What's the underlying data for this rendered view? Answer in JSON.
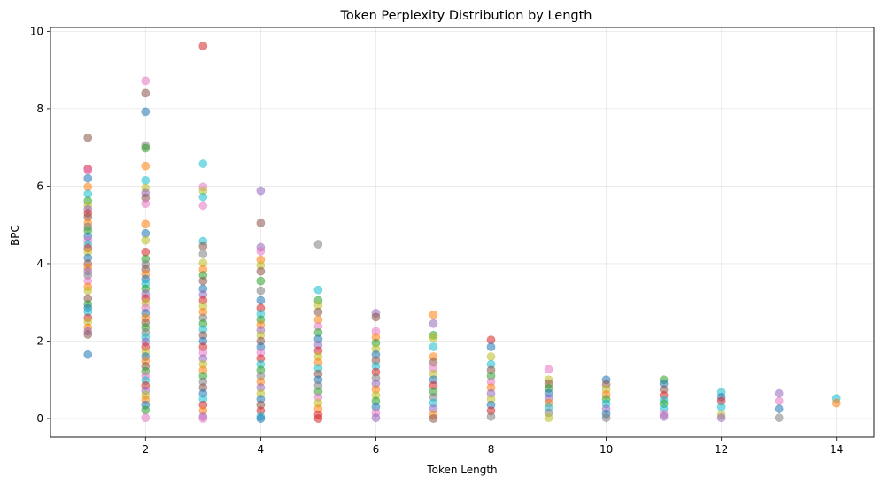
{
  "chart_data": {
    "type": "scatter",
    "title": "Token Perplexity Distribution by Length",
    "xlabel": "Token Length",
    "ylabel": "BPC",
    "xlim": [
      0.35,
      14.65
    ],
    "ylim": [
      -0.48,
      10.1
    ],
    "xticks": [
      2,
      4,
      6,
      8,
      10,
      12,
      14
    ],
    "yticks": [
      0,
      2,
      4,
      6,
      8,
      10
    ],
    "grid": true,
    "marker_alpha": 0.55,
    "palette": [
      "#1f77b4",
      "#ff7f0e",
      "#2ca02c",
      "#d62728",
      "#9467bd",
      "#8c564b",
      "#e377c2",
      "#7f7f7f",
      "#bcbd22",
      "#17becf"
    ],
    "points": [
      {
        "x": 1,
        "y": 7.25,
        "c": 5
      },
      {
        "x": 1,
        "y": 6.45,
        "c": 3
      },
      {
        "x": 1,
        "y": 6.4,
        "c": 6
      },
      {
        "x": 1,
        "y": 6.2,
        "c": 0
      },
      {
        "x": 1,
        "y": 5.98,
        "c": 1
      },
      {
        "x": 1,
        "y": 5.8,
        "c": 9
      },
      {
        "x": 1,
        "y": 5.62,
        "c": 2
      },
      {
        "x": 1,
        "y": 5.5,
        "c": 8
      },
      {
        "x": 1,
        "y": 5.4,
        "c": 4
      },
      {
        "x": 1,
        "y": 5.3,
        "c": 3
      },
      {
        "x": 1,
        "y": 5.2,
        "c": 5
      },
      {
        "x": 1,
        "y": 5.05,
        "c": 1
      },
      {
        "x": 1,
        "y": 4.95,
        "c": 7
      },
      {
        "x": 1,
        "y": 4.85,
        "c": 2
      },
      {
        "x": 1,
        "y": 4.7,
        "c": 0
      },
      {
        "x": 1,
        "y": 4.6,
        "c": 6
      },
      {
        "x": 1,
        "y": 4.5,
        "c": 9
      },
      {
        "x": 1,
        "y": 4.4,
        "c": 3
      },
      {
        "x": 1,
        "y": 4.3,
        "c": 8
      },
      {
        "x": 1,
        "y": 4.15,
        "c": 0
      },
      {
        "x": 1,
        "y": 4.0,
        "c": 5
      },
      {
        "x": 1,
        "y": 3.9,
        "c": 1
      },
      {
        "x": 1,
        "y": 3.8,
        "c": 4
      },
      {
        "x": 1,
        "y": 3.7,
        "c": 7
      },
      {
        "x": 1,
        "y": 3.55,
        "c": 6
      },
      {
        "x": 1,
        "y": 3.4,
        "c": 1
      },
      {
        "x": 1,
        "y": 3.3,
        "c": 8
      },
      {
        "x": 1,
        "y": 3.1,
        "c": 5
      },
      {
        "x": 1,
        "y": 2.95,
        "c": 2
      },
      {
        "x": 1,
        "y": 2.85,
        "c": 0
      },
      {
        "x": 1,
        "y": 2.75,
        "c": 9
      },
      {
        "x": 1,
        "y": 2.6,
        "c": 3
      },
      {
        "x": 1,
        "y": 2.5,
        "c": 8
      },
      {
        "x": 1,
        "y": 2.35,
        "c": 1
      },
      {
        "x": 1,
        "y": 2.25,
        "c": 4
      },
      {
        "x": 1,
        "y": 2.17,
        "c": 5
      },
      {
        "x": 1,
        "y": 1.65,
        "c": 0
      },
      {
        "x": 2,
        "y": 8.72,
        "c": 6
      },
      {
        "x": 2,
        "y": 8.4,
        "c": 5
      },
      {
        "x": 2,
        "y": 7.92,
        "c": 0
      },
      {
        "x": 2,
        "y": 7.05,
        "c": 7
      },
      {
        "x": 2,
        "y": 6.98,
        "c": 2
      },
      {
        "x": 2,
        "y": 6.52,
        "c": 1
      },
      {
        "x": 2,
        "y": 6.15,
        "c": 9
      },
      {
        "x": 2,
        "y": 5.95,
        "c": 8
      },
      {
        "x": 2,
        "y": 5.82,
        "c": 4
      },
      {
        "x": 2,
        "y": 5.7,
        "c": 5
      },
      {
        "x": 2,
        "y": 5.55,
        "c": 6
      },
      {
        "x": 2,
        "y": 5.02,
        "c": 1
      },
      {
        "x": 2,
        "y": 4.78,
        "c": 0
      },
      {
        "x": 2,
        "y": 4.6,
        "c": 8
      },
      {
        "x": 2,
        "y": 4.3,
        "c": 3
      },
      {
        "x": 2,
        "y": 4.12,
        "c": 2
      },
      {
        "x": 2,
        "y": 3.98,
        "c": 7
      },
      {
        "x": 2,
        "y": 3.85,
        "c": 5
      },
      {
        "x": 2,
        "y": 3.72,
        "c": 1
      },
      {
        "x": 2,
        "y": 3.6,
        "c": 0
      },
      {
        "x": 2,
        "y": 3.48,
        "c": 9
      },
      {
        "x": 2,
        "y": 3.35,
        "c": 2
      },
      {
        "x": 2,
        "y": 3.22,
        "c": 4
      },
      {
        "x": 2,
        "y": 3.1,
        "c": 3
      },
      {
        "x": 2,
        "y": 2.98,
        "c": 8
      },
      {
        "x": 2,
        "y": 2.85,
        "c": 6
      },
      {
        "x": 2,
        "y": 2.72,
        "c": 0
      },
      {
        "x": 2,
        "y": 2.6,
        "c": 1
      },
      {
        "x": 2,
        "y": 2.48,
        "c": 5
      },
      {
        "x": 2,
        "y": 2.35,
        "c": 2
      },
      {
        "x": 2,
        "y": 2.22,
        "c": 7
      },
      {
        "x": 2,
        "y": 2.1,
        "c": 9
      },
      {
        "x": 2,
        "y": 1.98,
        "c": 4
      },
      {
        "x": 2,
        "y": 1.85,
        "c": 3
      },
      {
        "x": 2,
        "y": 1.72,
        "c": 8
      },
      {
        "x": 2,
        "y": 1.6,
        "c": 0
      },
      {
        "x": 2,
        "y": 1.48,
        "c": 1
      },
      {
        "x": 2,
        "y": 1.35,
        "c": 5
      },
      {
        "x": 2,
        "y": 1.22,
        "c": 2
      },
      {
        "x": 2,
        "y": 1.1,
        "c": 6
      },
      {
        "x": 2,
        "y": 0.98,
        "c": 9
      },
      {
        "x": 2,
        "y": 0.85,
        "c": 3
      },
      {
        "x": 2,
        "y": 0.72,
        "c": 4
      },
      {
        "x": 2,
        "y": 0.6,
        "c": 8
      },
      {
        "x": 2,
        "y": 0.48,
        "c": 1
      },
      {
        "x": 2,
        "y": 0.35,
        "c": 0
      },
      {
        "x": 2,
        "y": 0.22,
        "c": 2
      },
      {
        "x": 2,
        "y": 0.02,
        "c": 6
      },
      {
        "x": 3,
        "y": 9.62,
        "c": 3
      },
      {
        "x": 3,
        "y": 6.58,
        "c": 9
      },
      {
        "x": 3,
        "y": 5.98,
        "c": 6
      },
      {
        "x": 3,
        "y": 5.88,
        "c": 8
      },
      {
        "x": 3,
        "y": 5.72,
        "c": 9
      },
      {
        "x": 3,
        "y": 5.5,
        "c": 6
      },
      {
        "x": 3,
        "y": 4.58,
        "c": 9
      },
      {
        "x": 3,
        "y": 4.45,
        "c": 5
      },
      {
        "x": 3,
        "y": 4.25,
        "c": 7
      },
      {
        "x": 3,
        "y": 4.02,
        "c": 8
      },
      {
        "x": 3,
        "y": 3.85,
        "c": 1
      },
      {
        "x": 3,
        "y": 3.7,
        "c": 2
      },
      {
        "x": 3,
        "y": 3.55,
        "c": 5
      },
      {
        "x": 3,
        "y": 3.35,
        "c": 0
      },
      {
        "x": 3,
        "y": 3.2,
        "c": 4
      },
      {
        "x": 3,
        "y": 3.05,
        "c": 3
      },
      {
        "x": 3,
        "y": 2.9,
        "c": 8
      },
      {
        "x": 3,
        "y": 2.75,
        "c": 1
      },
      {
        "x": 3,
        "y": 2.6,
        "c": 7
      },
      {
        "x": 3,
        "y": 2.45,
        "c": 2
      },
      {
        "x": 3,
        "y": 2.3,
        "c": 9
      },
      {
        "x": 3,
        "y": 2.15,
        "c": 5
      },
      {
        "x": 3,
        "y": 2.0,
        "c": 0
      },
      {
        "x": 3,
        "y": 1.85,
        "c": 3
      },
      {
        "x": 3,
        "y": 1.7,
        "c": 6
      },
      {
        "x": 3,
        "y": 1.55,
        "c": 4
      },
      {
        "x": 3,
        "y": 1.4,
        "c": 8
      },
      {
        "x": 3,
        "y": 1.25,
        "c": 1
      },
      {
        "x": 3,
        "y": 1.1,
        "c": 2
      },
      {
        "x": 3,
        "y": 0.95,
        "c": 7
      },
      {
        "x": 3,
        "y": 0.8,
        "c": 5
      },
      {
        "x": 3,
        "y": 0.65,
        "c": 0
      },
      {
        "x": 3,
        "y": 0.5,
        "c": 9
      },
      {
        "x": 3,
        "y": 0.35,
        "c": 3
      },
      {
        "x": 3,
        "y": 0.2,
        "c": 1
      },
      {
        "x": 3,
        "y": 0.05,
        "c": 4
      },
      {
        "x": 3,
        "y": 0.0,
        "c": 6
      },
      {
        "x": 4,
        "y": 5.88,
        "c": 4
      },
      {
        "x": 4,
        "y": 5.05,
        "c": 5
      },
      {
        "x": 4,
        "y": 4.42,
        "c": 4
      },
      {
        "x": 4,
        "y": 4.32,
        "c": 6
      },
      {
        "x": 4,
        "y": 4.1,
        "c": 1
      },
      {
        "x": 4,
        "y": 3.95,
        "c": 8
      },
      {
        "x": 4,
        "y": 3.8,
        "c": 5
      },
      {
        "x": 4,
        "y": 3.55,
        "c": 2
      },
      {
        "x": 4,
        "y": 3.3,
        "c": 7
      },
      {
        "x": 4,
        "y": 3.05,
        "c": 0
      },
      {
        "x": 4,
        "y": 2.85,
        "c": 3
      },
      {
        "x": 4,
        "y": 2.7,
        "c": 9
      },
      {
        "x": 4,
        "y": 2.55,
        "c": 2
      },
      {
        "x": 4,
        "y": 2.42,
        "c": 1
      },
      {
        "x": 4,
        "y": 2.28,
        "c": 4
      },
      {
        "x": 4,
        "y": 2.15,
        "c": 8
      },
      {
        "x": 4,
        "y": 2.0,
        "c": 5
      },
      {
        "x": 4,
        "y": 1.85,
        "c": 0
      },
      {
        "x": 4,
        "y": 1.7,
        "c": 6
      },
      {
        "x": 4,
        "y": 1.55,
        "c": 3
      },
      {
        "x": 4,
        "y": 1.4,
        "c": 9
      },
      {
        "x": 4,
        "y": 1.25,
        "c": 2
      },
      {
        "x": 4,
        "y": 1.1,
        "c": 7
      },
      {
        "x": 4,
        "y": 0.95,
        "c": 1
      },
      {
        "x": 4,
        "y": 0.8,
        "c": 4
      },
      {
        "x": 4,
        "y": 0.65,
        "c": 8
      },
      {
        "x": 4,
        "y": 0.5,
        "c": 0
      },
      {
        "x": 4,
        "y": 0.35,
        "c": 5
      },
      {
        "x": 4,
        "y": 0.2,
        "c": 3
      },
      {
        "x": 4,
        "y": 0.05,
        "c": 9
      },
      {
        "x": 4,
        "y": 0.0,
        "c": 0
      },
      {
        "x": 5,
        "y": 4.5,
        "c": 7
      },
      {
        "x": 5,
        "y": 3.32,
        "c": 9
      },
      {
        "x": 5,
        "y": 3.05,
        "c": 2
      },
      {
        "x": 5,
        "y": 2.92,
        "c": 8
      },
      {
        "x": 5,
        "y": 2.75,
        "c": 5
      },
      {
        "x": 5,
        "y": 2.55,
        "c": 1
      },
      {
        "x": 5,
        "y": 2.38,
        "c": 6
      },
      {
        "x": 5,
        "y": 2.22,
        "c": 2
      },
      {
        "x": 5,
        "y": 2.05,
        "c": 0
      },
      {
        "x": 5,
        "y": 1.9,
        "c": 4
      },
      {
        "x": 5,
        "y": 1.75,
        "c": 3
      },
      {
        "x": 5,
        "y": 1.6,
        "c": 8
      },
      {
        "x": 5,
        "y": 1.45,
        "c": 1
      },
      {
        "x": 5,
        "y": 1.3,
        "c": 9
      },
      {
        "x": 5,
        "y": 1.15,
        "c": 5
      },
      {
        "x": 5,
        "y": 1.0,
        "c": 0
      },
      {
        "x": 5,
        "y": 0.85,
        "c": 7
      },
      {
        "x": 5,
        "y": 0.7,
        "c": 2
      },
      {
        "x": 5,
        "y": 0.55,
        "c": 6
      },
      {
        "x": 5,
        "y": 0.4,
        "c": 8
      },
      {
        "x": 5,
        "y": 0.25,
        "c": 1
      },
      {
        "x": 5,
        "y": 0.1,
        "c": 3
      },
      {
        "x": 5,
        "y": 0.0,
        "c": 3
      },
      {
        "x": 6,
        "y": 2.72,
        "c": 4
      },
      {
        "x": 6,
        "y": 2.62,
        "c": 5
      },
      {
        "x": 6,
        "y": 2.25,
        "c": 6
      },
      {
        "x": 6,
        "y": 2.1,
        "c": 1
      },
      {
        "x": 6,
        "y": 1.95,
        "c": 2
      },
      {
        "x": 6,
        "y": 1.8,
        "c": 8
      },
      {
        "x": 6,
        "y": 1.65,
        "c": 0
      },
      {
        "x": 6,
        "y": 1.5,
        "c": 5
      },
      {
        "x": 6,
        "y": 1.35,
        "c": 9
      },
      {
        "x": 6,
        "y": 1.2,
        "c": 3
      },
      {
        "x": 6,
        "y": 1.05,
        "c": 7
      },
      {
        "x": 6,
        "y": 0.9,
        "c": 4
      },
      {
        "x": 6,
        "y": 0.75,
        "c": 1
      },
      {
        "x": 6,
        "y": 0.6,
        "c": 8
      },
      {
        "x": 6,
        "y": 0.45,
        "c": 2
      },
      {
        "x": 6,
        "y": 0.3,
        "c": 0
      },
      {
        "x": 6,
        "y": 0.15,
        "c": 6
      },
      {
        "x": 6,
        "y": 0.02,
        "c": 4
      },
      {
        "x": 7,
        "y": 2.68,
        "c": 1
      },
      {
        "x": 7,
        "y": 2.45,
        "c": 4
      },
      {
        "x": 7,
        "y": 2.15,
        "c": 2
      },
      {
        "x": 7,
        "y": 2.08,
        "c": 8
      },
      {
        "x": 7,
        "y": 1.85,
        "c": 9
      },
      {
        "x": 7,
        "y": 1.6,
        "c": 1
      },
      {
        "x": 7,
        "y": 1.45,
        "c": 5
      },
      {
        "x": 7,
        "y": 1.3,
        "c": 6
      },
      {
        "x": 7,
        "y": 1.15,
        "c": 8
      },
      {
        "x": 7,
        "y": 1.0,
        "c": 0
      },
      {
        "x": 7,
        "y": 0.85,
        "c": 3
      },
      {
        "x": 7,
        "y": 0.7,
        "c": 2
      },
      {
        "x": 7,
        "y": 0.55,
        "c": 7
      },
      {
        "x": 7,
        "y": 0.4,
        "c": 9
      },
      {
        "x": 7,
        "y": 0.25,
        "c": 4
      },
      {
        "x": 7,
        "y": 0.1,
        "c": 1
      },
      {
        "x": 7,
        "y": 0.0,
        "c": 5
      },
      {
        "x": 8,
        "y": 2.03,
        "c": 3
      },
      {
        "x": 8,
        "y": 1.85,
        "c": 0
      },
      {
        "x": 8,
        "y": 1.6,
        "c": 8
      },
      {
        "x": 8,
        "y": 1.4,
        "c": 9
      },
      {
        "x": 8,
        "y": 1.25,
        "c": 5
      },
      {
        "x": 8,
        "y": 1.1,
        "c": 2
      },
      {
        "x": 8,
        "y": 0.95,
        "c": 6
      },
      {
        "x": 8,
        "y": 0.8,
        "c": 1
      },
      {
        "x": 8,
        "y": 0.65,
        "c": 4
      },
      {
        "x": 8,
        "y": 0.5,
        "c": 8
      },
      {
        "x": 8,
        "y": 0.35,
        "c": 0
      },
      {
        "x": 8,
        "y": 0.2,
        "c": 3
      },
      {
        "x": 8,
        "y": 0.05,
        "c": 7
      },
      {
        "x": 9,
        "y": 1.27,
        "c": 6
      },
      {
        "x": 9,
        "y": 1.0,
        "c": 8
      },
      {
        "x": 9,
        "y": 0.9,
        "c": 5
      },
      {
        "x": 9,
        "y": 0.78,
        "c": 2
      },
      {
        "x": 9,
        "y": 0.65,
        "c": 0
      },
      {
        "x": 9,
        "y": 0.52,
        "c": 4
      },
      {
        "x": 9,
        "y": 0.4,
        "c": 1
      },
      {
        "x": 9,
        "y": 0.28,
        "c": 9
      },
      {
        "x": 9,
        "y": 0.15,
        "c": 7
      },
      {
        "x": 9,
        "y": 0.02,
        "c": 8
      },
      {
        "x": 10,
        "y": 1.0,
        "c": 0
      },
      {
        "x": 10,
        "y": 0.88,
        "c": 5
      },
      {
        "x": 10,
        "y": 0.75,
        "c": 8
      },
      {
        "x": 10,
        "y": 0.62,
        "c": 1
      },
      {
        "x": 10,
        "y": 0.5,
        "c": 2
      },
      {
        "x": 10,
        "y": 0.38,
        "c": 9
      },
      {
        "x": 10,
        "y": 0.25,
        "c": 4
      },
      {
        "x": 10,
        "y": 0.12,
        "c": 0
      },
      {
        "x": 10,
        "y": 0.02,
        "c": 7
      },
      {
        "x": 11,
        "y": 1.0,
        "c": 2
      },
      {
        "x": 11,
        "y": 0.9,
        "c": 0
      },
      {
        "x": 11,
        "y": 0.75,
        "c": 5
      },
      {
        "x": 11,
        "y": 0.6,
        "c": 3
      },
      {
        "x": 11,
        "y": 0.48,
        "c": 9
      },
      {
        "x": 11,
        "y": 0.38,
        "c": 2
      },
      {
        "x": 11,
        "y": 0.25,
        "c": 9
      },
      {
        "x": 11,
        "y": 0.12,
        "c": 6
      },
      {
        "x": 11,
        "y": 0.05,
        "c": 4
      },
      {
        "x": 12,
        "y": 0.68,
        "c": 9
      },
      {
        "x": 12,
        "y": 0.55,
        "c": 0
      },
      {
        "x": 12,
        "y": 0.45,
        "c": 3
      },
      {
        "x": 12,
        "y": 0.3,
        "c": 9
      },
      {
        "x": 12,
        "y": 0.1,
        "c": 8
      },
      {
        "x": 12,
        "y": 0.02,
        "c": 4
      },
      {
        "x": 13,
        "y": 0.65,
        "c": 4
      },
      {
        "x": 13,
        "y": 0.45,
        "c": 6
      },
      {
        "x": 13,
        "y": 0.25,
        "c": 0
      },
      {
        "x": 13,
        "y": 0.02,
        "c": 7
      },
      {
        "x": 14,
        "y": 0.52,
        "c": 9
      },
      {
        "x": 14,
        "y": 0.4,
        "c": 1
      }
    ]
  }
}
